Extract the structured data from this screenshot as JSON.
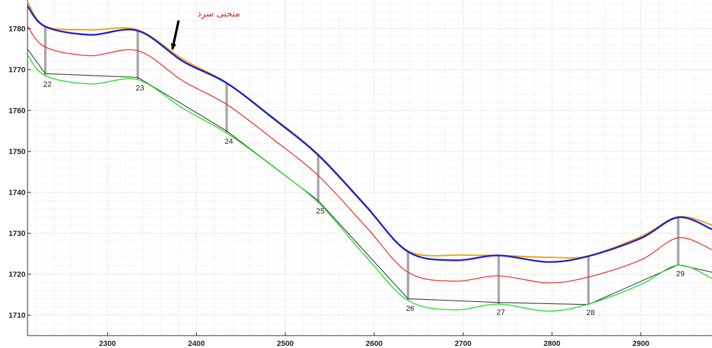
{
  "chart_data": {
    "type": "line",
    "title": "",
    "xlabel": "",
    "ylabel": "",
    "xlim": [
      2210,
      2980
    ],
    "ylim": [
      1705,
      1787
    ],
    "x_ticks": [
      2300,
      2400,
      2500,
      2600,
      2700,
      2800,
      2900
    ],
    "y_ticks": [
      1710,
      1720,
      1730,
      1740,
      1750,
      1760,
      1770,
      1780
    ],
    "grid": "dotted-minor",
    "colors": {
      "orange": "#f5a300",
      "blue": "#1a1adf",
      "red": "#ee2c2c",
      "black": "#333333",
      "green": "#22dd22",
      "posts": "#a6a6a6",
      "annotation": "#e02020"
    },
    "series": [
      {
        "color": "orange",
        "points": [
          [
            2210,
            1786.5
          ],
          [
            2230,
            1780.6
          ],
          [
            2280,
            1779.7
          ],
          [
            2334,
            1779.7
          ],
          [
            2385,
            1772.5
          ],
          [
            2434,
            1766.8
          ],
          [
            2485,
            1758.5
          ],
          [
            2537,
            1749.3
          ],
          [
            2590,
            1737
          ],
          [
            2638,
            1725.7
          ],
          [
            2700,
            1724.7
          ],
          [
            2740,
            1724.6
          ],
          [
            2800,
            1724.1
          ],
          [
            2841,
            1724.5
          ],
          [
            2900,
            1729.2
          ],
          [
            2942,
            1734
          ],
          [
            2980,
            1732
          ]
        ]
      },
      {
        "color": "blue",
        "points": [
          [
            2210,
            1785.5
          ],
          [
            2230,
            1780.5
          ],
          [
            2280,
            1778.5
          ],
          [
            2334,
            1779.5
          ],
          [
            2385,
            1772
          ],
          [
            2434,
            1766.7
          ],
          [
            2485,
            1758.3
          ],
          [
            2537,
            1749.1
          ],
          [
            2590,
            1736.8
          ],
          [
            2638,
            1725.5
          ],
          [
            2690,
            1723.4
          ],
          [
            2740,
            1724.6
          ],
          [
            2795,
            1723
          ],
          [
            2841,
            1724.4
          ],
          [
            2900,
            1728.8
          ],
          [
            2942,
            1733.9
          ],
          [
            2980,
            1731
          ]
        ]
      },
      {
        "color": "red",
        "points": [
          [
            2210,
            1780.6
          ],
          [
            2230,
            1775.5
          ],
          [
            2280,
            1773.4
          ],
          [
            2334,
            1774.6
          ],
          [
            2385,
            1767.2
          ],
          [
            2434,
            1761.5
          ],
          [
            2485,
            1753.2
          ],
          [
            2537,
            1744.1
          ],
          [
            2590,
            1731.8
          ],
          [
            2638,
            1720.5
          ],
          [
            2690,
            1718.3
          ],
          [
            2740,
            1719.6
          ],
          [
            2795,
            1717.9
          ],
          [
            2841,
            1719.3
          ],
          [
            2900,
            1723.5
          ],
          [
            2942,
            1728.9
          ],
          [
            2980,
            1726
          ]
        ]
      },
      {
        "color": "black",
        "points": [
          [
            2210,
            1775
          ],
          [
            2230,
            1769
          ],
          [
            2334,
            1768.1
          ],
          [
            2434,
            1755
          ],
          [
            2537,
            1738
          ],
          [
            2638,
            1714
          ],
          [
            2740,
            1713.1
          ],
          [
            2841,
            1712.6
          ],
          [
            2942,
            1722.3
          ],
          [
            2980,
            1720.5
          ]
        ]
      },
      {
        "color": "green",
        "points": [
          [
            2210,
            1773.6
          ],
          [
            2230,
            1768.5
          ],
          [
            2280,
            1766.5
          ],
          [
            2334,
            1767.5
          ],
          [
            2385,
            1760.5
          ],
          [
            2434,
            1754.5
          ],
          [
            2485,
            1746.5
          ],
          [
            2537,
            1737.5
          ],
          [
            2590,
            1724.5
          ],
          [
            2638,
            1713.6
          ],
          [
            2690,
            1711.3
          ],
          [
            2740,
            1712.7
          ],
          [
            2795,
            1711
          ],
          [
            2841,
            1712.7
          ],
          [
            2900,
            1717.5
          ],
          [
            2942,
            1722.2
          ],
          [
            2980,
            1719
          ]
        ]
      }
    ],
    "posts": [
      {
        "x": 2230,
        "top": 1780.5,
        "bottom": 1768.5
      },
      {
        "x": 2334,
        "top": 1779.6,
        "bottom": 1767.6
      },
      {
        "x": 2434,
        "top": 1766.7,
        "bottom": 1754.6
      },
      {
        "x": 2537,
        "top": 1749.2,
        "bottom": 1737.5
      },
      {
        "x": 2638,
        "top": 1725.6,
        "bottom": 1713.7
      },
      {
        "x": 2740,
        "top": 1724.6,
        "bottom": 1712.8
      },
      {
        "x": 2841,
        "top": 1724.4,
        "bottom": 1712.7
      },
      {
        "x": 2942,
        "top": 1733.9,
        "bottom": 1722.2
      }
    ],
    "node_labels": [
      {
        "text": "22",
        "x": 2230,
        "y": 1768.5
      },
      {
        "text": "23",
        "x": 2334,
        "y": 1767.6
      },
      {
        "text": "24",
        "x": 2434,
        "y": 1754.6
      },
      {
        "text": "25",
        "x": 2537,
        "y": 1737.5
      },
      {
        "text": "26",
        "x": 2638,
        "y": 1713.7
      },
      {
        "text": "27",
        "x": 2740,
        "y": 1712.8
      },
      {
        "text": "28",
        "x": 2841,
        "y": 1712.7
      },
      {
        "text": "29",
        "x": 2942,
        "y": 1722.2
      }
    ],
    "annotation": {
      "text": "منحنی سرد",
      "text_at": [
        2425,
        1783
      ],
      "arrow_from": [
        2380,
        1782
      ],
      "arrow_to": [
        2373,
        1775
      ]
    }
  }
}
